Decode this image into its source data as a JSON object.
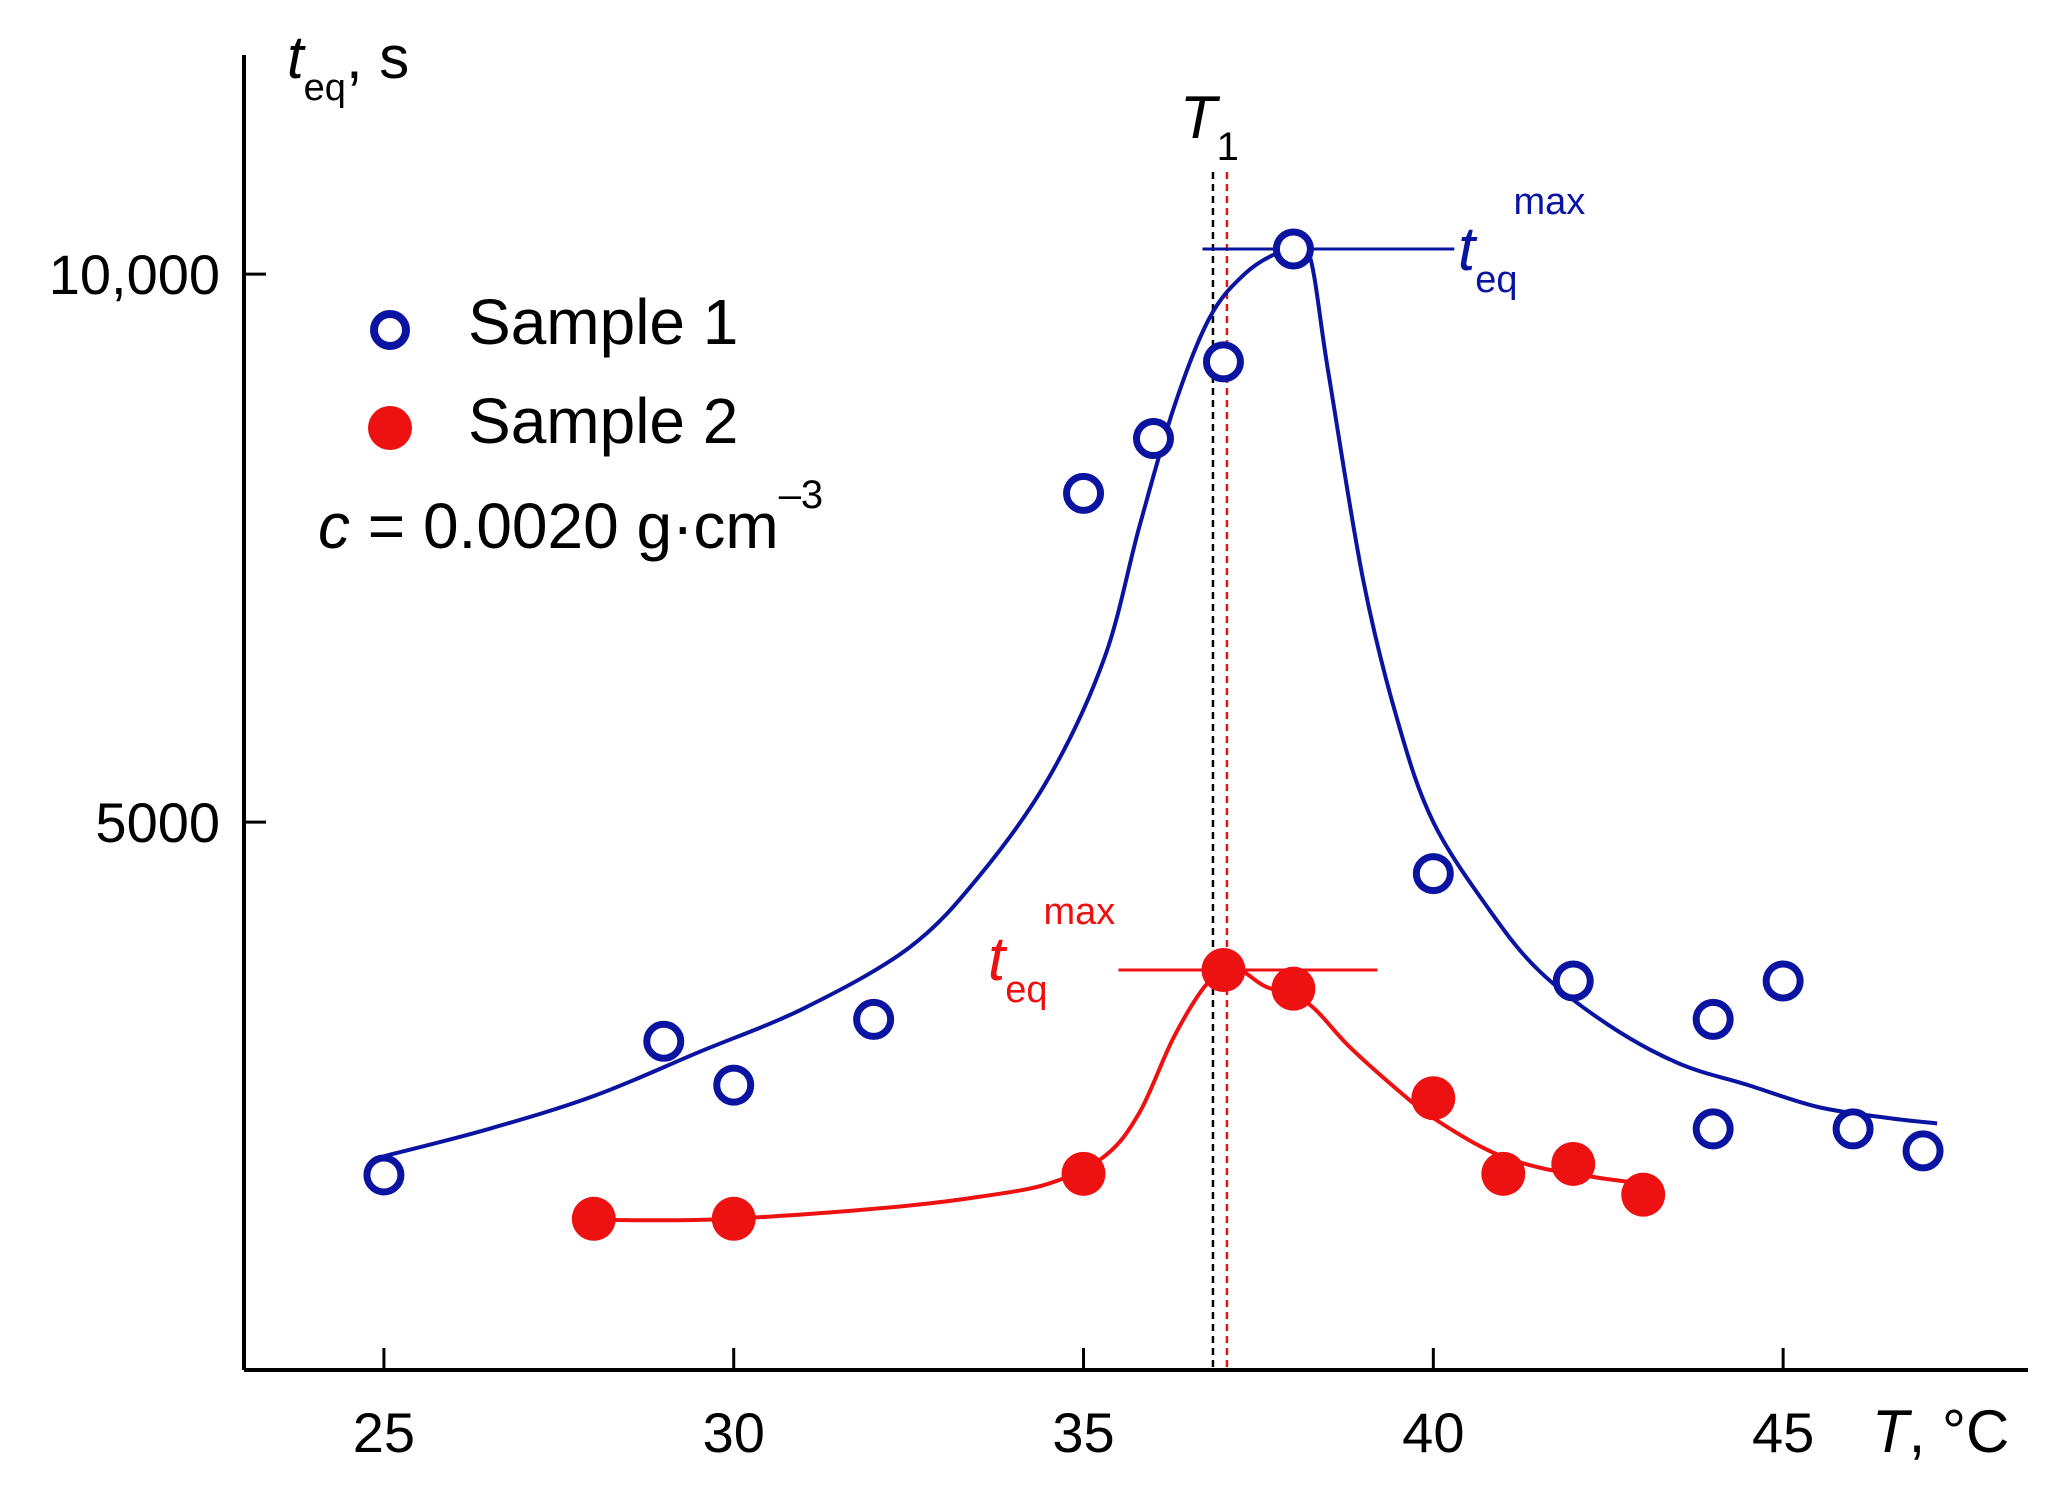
{
  "chart_data": {
    "type": "scatter",
    "x": {
      "label_var": "T",
      "label_unit": ", °C",
      "min": 23,
      "max": 48.5,
      "ticks": [
        25,
        30,
        35,
        40,
        45
      ]
    },
    "y": {
      "label_var": "t",
      "label_sub": "eq",
      "label_unit": ", s",
      "min": 0,
      "max": 12000,
      "ticks": [
        5000,
        10000
      ],
      "tick_labels": [
        "5000",
        "10,000"
      ]
    },
    "series": [
      {
        "name": "Sample 1",
        "marker": "open-circle",
        "color": "#0a14a0",
        "points": [
          [
            25,
            1780
          ],
          [
            29,
            3000
          ],
          [
            30,
            2600
          ],
          [
            32,
            3200
          ],
          [
            35,
            8000
          ],
          [
            36,
            8500
          ],
          [
            37,
            9200
          ],
          [
            38,
            10230
          ],
          [
            40,
            4530
          ],
          [
            42,
            3550
          ],
          [
            44,
            3200
          ],
          [
            44,
            2200
          ],
          [
            45,
            3550
          ],
          [
            46,
            2200
          ],
          [
            47,
            2000
          ]
        ],
        "fit": [
          [
            25,
            1950
          ],
          [
            26.5,
            2200
          ],
          [
            28,
            2500
          ],
          [
            29.5,
            2900
          ],
          [
            31,
            3300
          ],
          [
            32.5,
            3850
          ],
          [
            33.5,
            4500
          ],
          [
            34.5,
            5400
          ],
          [
            35.3,
            6500
          ],
          [
            35.8,
            7700
          ],
          [
            36.3,
            8800
          ],
          [
            36.8,
            9600
          ],
          [
            37.3,
            10000
          ],
          [
            37.8,
            10200
          ],
          [
            38.2,
            10230
          ],
          [
            38.5,
            9100
          ],
          [
            39,
            7200
          ],
          [
            39.5,
            5900
          ],
          [
            40,
            5000
          ],
          [
            40.8,
            4200
          ],
          [
            41.5,
            3650
          ],
          [
            42.5,
            3150
          ],
          [
            43.5,
            2800
          ],
          [
            44.5,
            2600
          ],
          [
            45.5,
            2400
          ],
          [
            46.5,
            2300
          ],
          [
            47.2,
            2250
          ]
        ]
      },
      {
        "name": "Sample 2",
        "marker": "filled-circle",
        "color": "#ee1111",
        "points": [
          [
            28,
            1380
          ],
          [
            30,
            1380
          ],
          [
            35,
            1790
          ],
          [
            37,
            3650
          ],
          [
            38,
            3480
          ],
          [
            40,
            2480
          ],
          [
            41,
            1790
          ],
          [
            42,
            1880
          ],
          [
            43,
            1600
          ]
        ],
        "fit": [
          [
            28,
            1370
          ],
          [
            29.5,
            1370
          ],
          [
            31,
            1420
          ],
          [
            32.5,
            1500
          ],
          [
            33.5,
            1580
          ],
          [
            34.5,
            1700
          ],
          [
            35.3,
            1950
          ],
          [
            35.8,
            2350
          ],
          [
            36.3,
            3050
          ],
          [
            36.8,
            3550
          ],
          [
            37.2,
            3650
          ],
          [
            37.6,
            3500
          ],
          [
            38.2,
            3350
          ],
          [
            38.8,
            2950
          ],
          [
            39.5,
            2550
          ],
          [
            40,
            2300
          ],
          [
            40.8,
            2000
          ],
          [
            41.5,
            1850
          ],
          [
            42.3,
            1760
          ],
          [
            43,
            1700
          ]
        ]
      }
    ],
    "annotations": {
      "T1": {
        "var": "T",
        "sub": "1",
        "x_black": 36.85,
        "x_red": 37.05
      },
      "tmax_blue": {
        "var": "t",
        "sub": "eq",
        "sup": "max",
        "y": 10230,
        "x_from": 36.7,
        "x_to": 40.3
      },
      "tmax_red": {
        "var": "t",
        "sub": "eq",
        "sup": "max",
        "y": 3650,
        "x_from": 35.5,
        "x_to": 39.2
      }
    },
    "legend": {
      "position": "top-left",
      "items": [
        "Sample 1",
        "Sample 2"
      ],
      "concentration": {
        "var": "c",
        "text": " = 0.0020 g·cm",
        "sup": "–3"
      }
    }
  }
}
